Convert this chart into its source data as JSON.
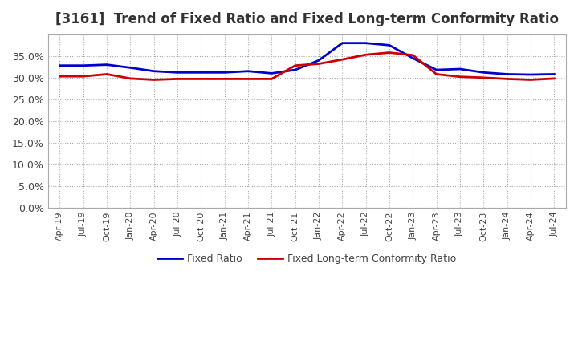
{
  "title": "[3161]  Trend of Fixed Ratio and Fixed Long-term Conformity Ratio",
  "fixed_ratio": {
    "dates": [
      "Apr-19",
      "Jul-19",
      "Oct-19",
      "Jan-20",
      "Apr-20",
      "Jul-20",
      "Oct-20",
      "Jan-21",
      "Apr-21",
      "Jul-21",
      "Oct-21",
      "Jan-22",
      "Apr-22",
      "Jul-22",
      "Oct-22",
      "Jan-23",
      "Apr-23",
      "Jul-23",
      "Oct-23",
      "Jan-24",
      "Apr-24",
      "Jul-24"
    ],
    "values": [
      0.328,
      0.328,
      0.33,
      0.323,
      0.315,
      0.312,
      0.312,
      0.312,
      0.315,
      0.31,
      0.318,
      0.34,
      0.38,
      0.38,
      0.375,
      0.345,
      0.318,
      0.32,
      0.312,
      0.308,
      0.307,
      0.308
    ],
    "color": "#0000cc"
  },
  "fixed_longterm_ratio": {
    "dates": [
      "Apr-19",
      "Jul-19",
      "Oct-19",
      "Jan-20",
      "Apr-20",
      "Jul-20",
      "Oct-20",
      "Jan-21",
      "Apr-21",
      "Jul-21",
      "Oct-21",
      "Jan-22",
      "Apr-22",
      "Jul-22",
      "Oct-22",
      "Jan-23",
      "Apr-23",
      "Jul-23",
      "Oct-23",
      "Jan-24",
      "Apr-24",
      "Jul-24"
    ],
    "values": [
      0.303,
      0.303,
      0.308,
      0.298,
      0.295,
      0.297,
      0.297,
      0.297,
      0.297,
      0.297,
      0.328,
      0.332,
      0.342,
      0.353,
      0.358,
      0.352,
      0.308,
      0.302,
      0.3,
      0.297,
      0.295,
      0.298
    ],
    "color": "#cc0000"
  },
  "ylim": [
    0.0,
    0.4
  ],
  "yticks": [
    0.0,
    0.05,
    0.1,
    0.15,
    0.2,
    0.25,
    0.3,
    0.35
  ],
  "legend_labels": [
    "Fixed Ratio",
    "Fixed Long-term Conformity Ratio"
  ],
  "background_color": "#ffffff",
  "grid_color": "#aaaaaa"
}
